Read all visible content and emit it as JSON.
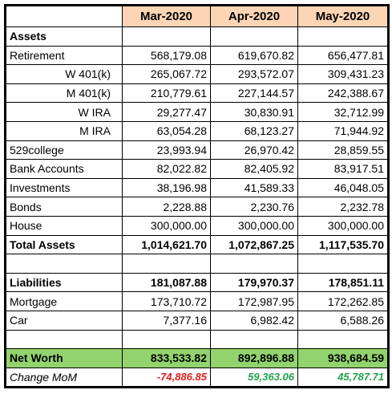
{
  "table": {
    "header": [
      "Mar-2020",
      "Apr-2020",
      "May-2020"
    ],
    "rows": [
      {
        "label": "Assets"
      },
      {
        "label": "Retirement",
        "values": [
          "568,179.08",
          "619,670.82",
          "656,477.81"
        ]
      },
      {
        "label": "W 401(k)",
        "values": [
          "265,067.72",
          "293,572.07",
          "309,431.23"
        ]
      },
      {
        "label": "M 401(k)",
        "values": [
          "210,779.61",
          "227,144.57",
          "242,388.67"
        ]
      },
      {
        "label": "W IRA",
        "values": [
          "29,277.47",
          "30,830.91",
          "32,712.99"
        ]
      },
      {
        "label": "M IRA",
        "values": [
          "63,054.28",
          "68,123.27",
          "71,944.92"
        ]
      },
      {
        "label": "529college",
        "values": [
          "23,993.94",
          "26,970.42",
          "28,859.55"
        ]
      },
      {
        "label": "Bank Accounts",
        "values": [
          "82,022.82",
          "82,405.92",
          "83,917.51"
        ]
      },
      {
        "label": "Investments",
        "values": [
          "38,196.98",
          "41,589.33",
          "46,048.05"
        ]
      },
      {
        "label": "Bonds",
        "values": [
          "2,228.88",
          "2,230.76",
          "2,232.78"
        ]
      },
      {
        "label": "House",
        "values": [
          "300,000.00",
          "300,000.00",
          "300,000.00"
        ]
      },
      {
        "label": "Total Assets",
        "values": [
          "1,014,621.70",
          "1,072,867.25",
          "1,117,535.70"
        ]
      },
      null,
      {
        "label": "Liabilities",
        "values": [
          "181,087.88",
          "179,970.37",
          "178,851.11"
        ]
      },
      {
        "label": "Mortgage",
        "values": [
          "173,710.72",
          "172,987.95",
          "172,262.85"
        ]
      },
      {
        "label": "Car",
        "values": [
          "7,377.16",
          "6,982.42",
          "6,588.26"
        ]
      },
      null,
      {
        "label": "Net Worth",
        "values": [
          "833,533.82",
          "892,896.88",
          "938,684.59"
        ]
      },
      {
        "label": "Change MoM",
        "values": [
          "-74,886.85",
          "59,363.06",
          "45,787.71"
        ]
      }
    ]
  }
}
